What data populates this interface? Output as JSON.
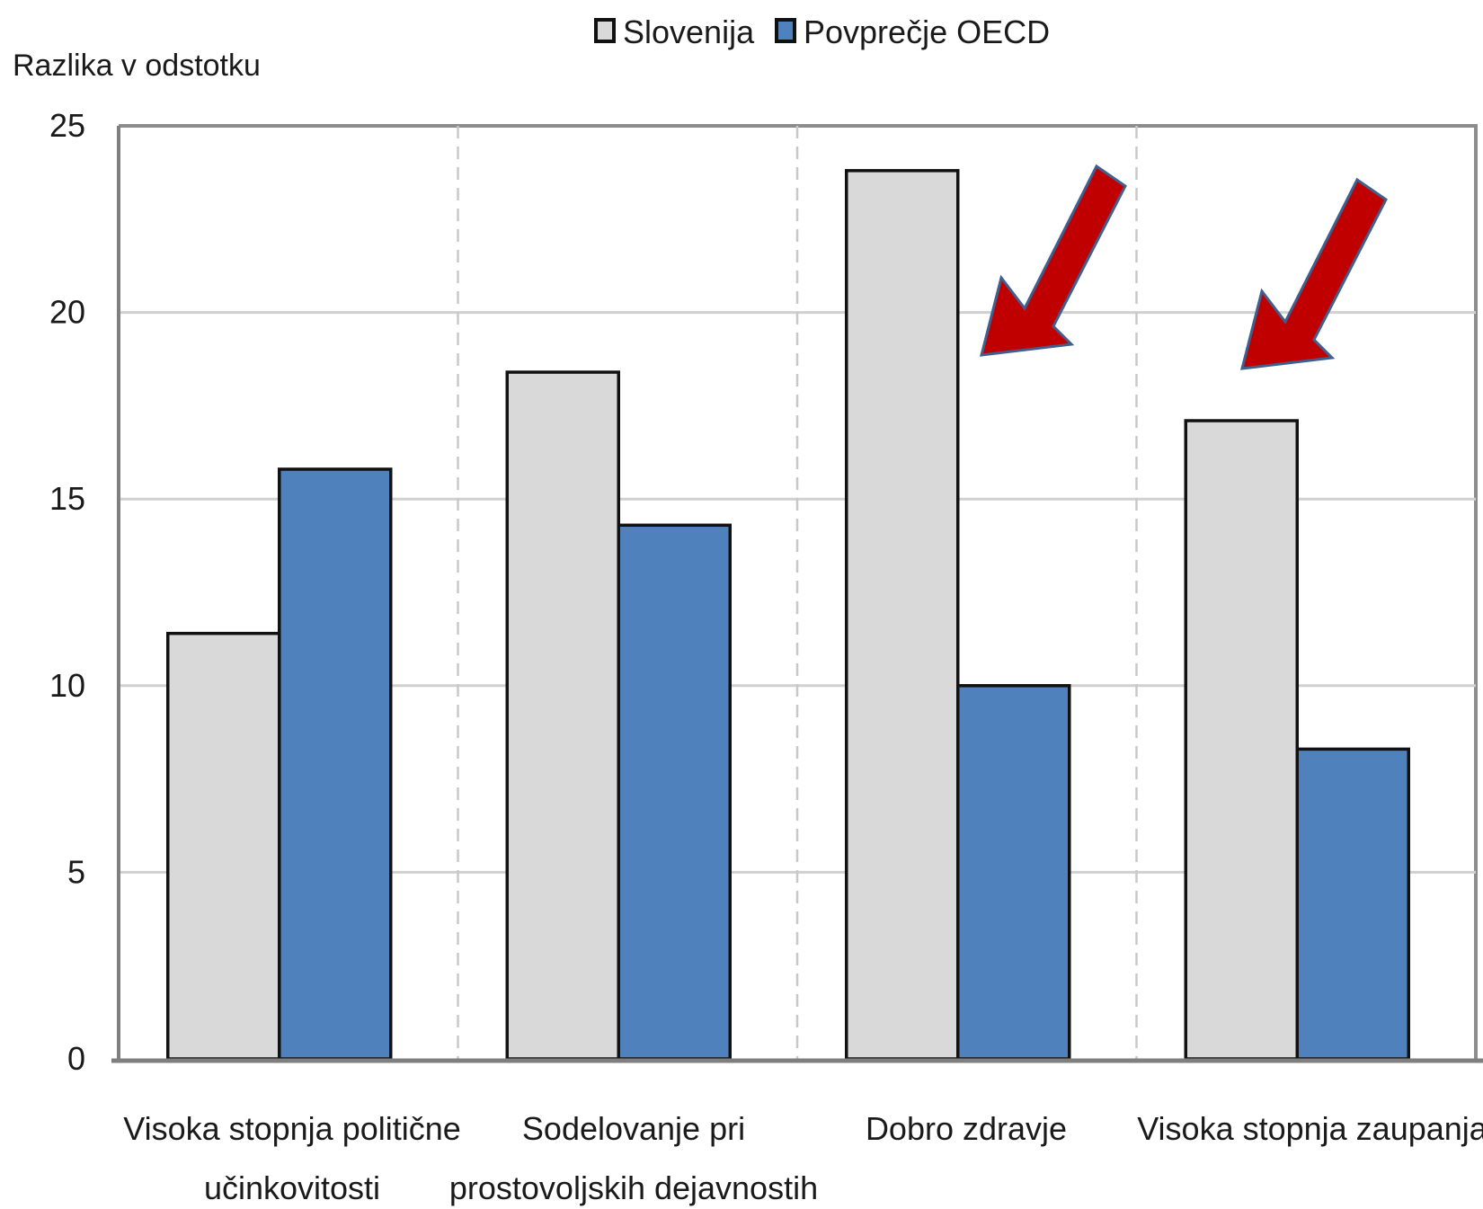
{
  "chart_data": {
    "type": "bar",
    "ylabel": "Razlika v odstotku",
    "ylim": [
      0,
      25
    ],
    "yticks": [
      "0",
      "5",
      "10",
      "15",
      "20",
      "25"
    ],
    "grid": true,
    "legend_position": "top",
    "categories": [
      [
        "Visoka stopnja politične",
        "učinkovitosti"
      ],
      [
        "Sodelovanje pri",
        "prostovoljskih dejavnostih"
      ],
      [
        "Dobro zdravje"
      ],
      [
        "Visoka stopnja zaupanja"
      ]
    ],
    "series": [
      {
        "name": "Slovenija",
        "color": "#d9d9d9",
        "values": [
          11.4,
          18.4,
          23.8,
          17.1
        ]
      },
      {
        "name": "Povprečje OECD",
        "color": "#4f81bd",
        "values": [
          15.8,
          14.3,
          10.0,
          8.3
        ]
      }
    ],
    "annotations": [
      {
        "type": "arrow",
        "color": "#c00000",
        "points_to_category": 2
      },
      {
        "type": "arrow",
        "color": "#c00000",
        "points_to_category": 3
      }
    ]
  }
}
